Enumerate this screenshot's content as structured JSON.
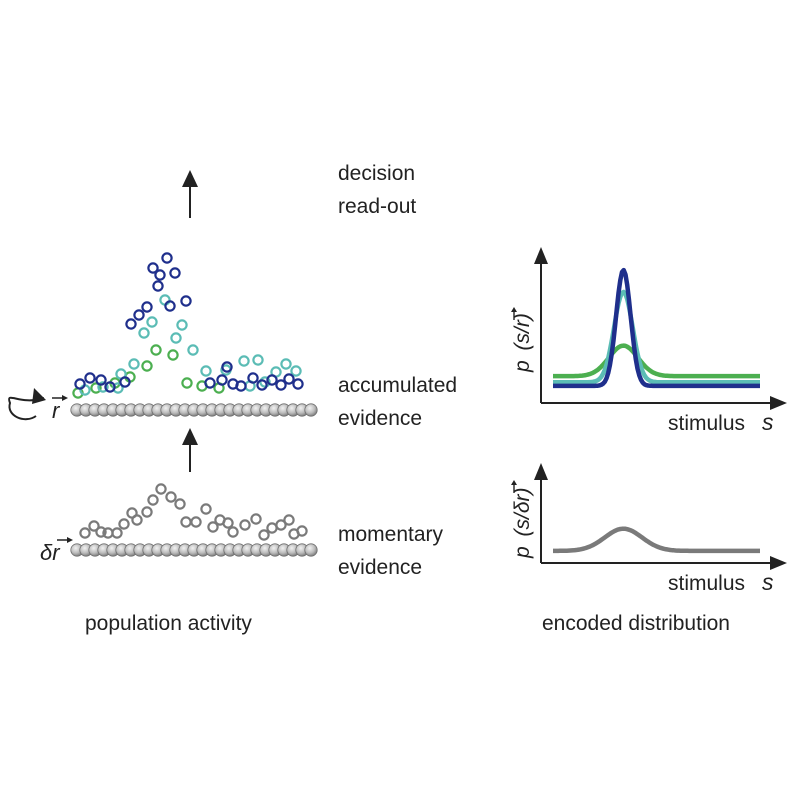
{
  "labels": {
    "decision": "decision",
    "readout": "read-out",
    "accumulated": "accumulated",
    "accumulated_evidence": "evidence",
    "momentary": "momentary",
    "momentary_evidence": "evidence",
    "population_activity": "population activity",
    "encoded_distribution": "encoded distribution",
    "r_symbol": "r",
    "dr_symbol": "δr"
  },
  "plots": {
    "top": {
      "ylabel_p": "p",
      "ylabel_args": "(s/r)",
      "xlabel": "stimulus",
      "xvar": "s"
    },
    "bottom": {
      "ylabel_p": "p",
      "ylabel_args": "(s/δr)",
      "xlabel": "stimulus",
      "xvar": "s"
    }
  },
  "colors": {
    "dark_blue": "#1f2f8c",
    "teal": "#5bbcb5",
    "green": "#4caf50",
    "gray": "#7a7a7a",
    "neuron_fill": "#bdbdbd"
  },
  "chart_data": [
    {
      "type": "line",
      "title": "",
      "xlabel": "stimulus s",
      "ylabel": "p (s/r)",
      "series": [
        {
          "color": "#4caf50",
          "baseline": 0.13,
          "peak": 0.38,
          "width": 0.07
        },
        {
          "color": "#5bbcb5",
          "baseline": 0.08,
          "peak": 0.82,
          "width": 0.045
        },
        {
          "color": "#1f2f8c",
          "baseline": 0.05,
          "peak": 1.0,
          "width": 0.035
        }
      ]
    },
    {
      "type": "line",
      "title": "",
      "xlabel": "stimulus s",
      "ylabel": "p (s/δr)",
      "series": [
        {
          "color": "#7a7a7a",
          "baseline": 0.1,
          "peak": 0.3,
          "width": 0.09
        }
      ]
    }
  ]
}
